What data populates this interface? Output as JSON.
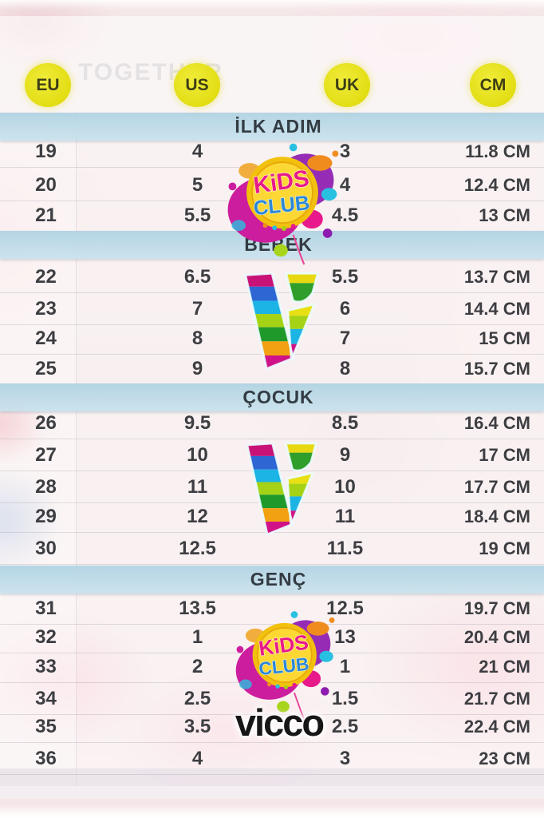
{
  "background": {
    "watermark_text": "TOGETHER"
  },
  "brand": {
    "wordmark": "vicco",
    "kids_club_line1": "KiDS",
    "kids_club_line2": "CLUB"
  },
  "columns": [
    "EU",
    "US",
    "UK",
    "CM"
  ],
  "sections": [
    {
      "title": "İLK ADIM",
      "rows": [
        [
          "19",
          "4",
          "3",
          "11.8 CM"
        ],
        [
          "20",
          "5",
          "4",
          "12.4 CM"
        ],
        [
          "21",
          "5.5",
          "4.5",
          "13 CM"
        ]
      ]
    },
    {
      "title": "BEBEK",
      "rows": [
        [
          "22",
          "6.5",
          "5.5",
          "13.7 CM"
        ],
        [
          "23",
          "7",
          "6",
          "14.4 CM"
        ],
        [
          "24",
          "8",
          "7",
          "15 CM"
        ],
        [
          "25",
          "9",
          "8",
          "15.7 CM"
        ]
      ]
    },
    {
      "title": "ÇOCUK",
      "rows": [
        [
          "26",
          "9.5",
          "8.5",
          "16.4 CM"
        ],
        [
          "27",
          "10",
          "9",
          "17 CM"
        ],
        [
          "28",
          "11",
          "10",
          "17.7 CM"
        ],
        [
          "29",
          "12",
          "11",
          "18.4 CM"
        ],
        [
          "30",
          "12.5",
          "11.5",
          "19 CM"
        ]
      ]
    },
    {
      "title": "GENÇ",
      "rows": [
        [
          "31",
          "13.5",
          "12.5",
          "19.7 CM"
        ],
        [
          "32",
          "1",
          "13",
          "20.4 CM"
        ],
        [
          "33",
          "2",
          "1",
          "21 CM"
        ],
        [
          "34",
          "2.5",
          "1.5",
          "21.7 CM"
        ],
        [
          "35",
          "3.5",
          "2.5",
          "22.4 CM"
        ],
        [
          "36",
          "4",
          "3",
          "23 CM"
        ]
      ]
    }
  ],
  "colors": {
    "header_circle": "#e2dd12",
    "section_band": "#bcd9e6",
    "value_text": "#3d3e42",
    "logo_magenta": "#cc1d9e",
    "logo_purple": "#8d1bb0",
    "logo_yellow": "#f2c10e",
    "logo_blue": "#2e86d4"
  }
}
